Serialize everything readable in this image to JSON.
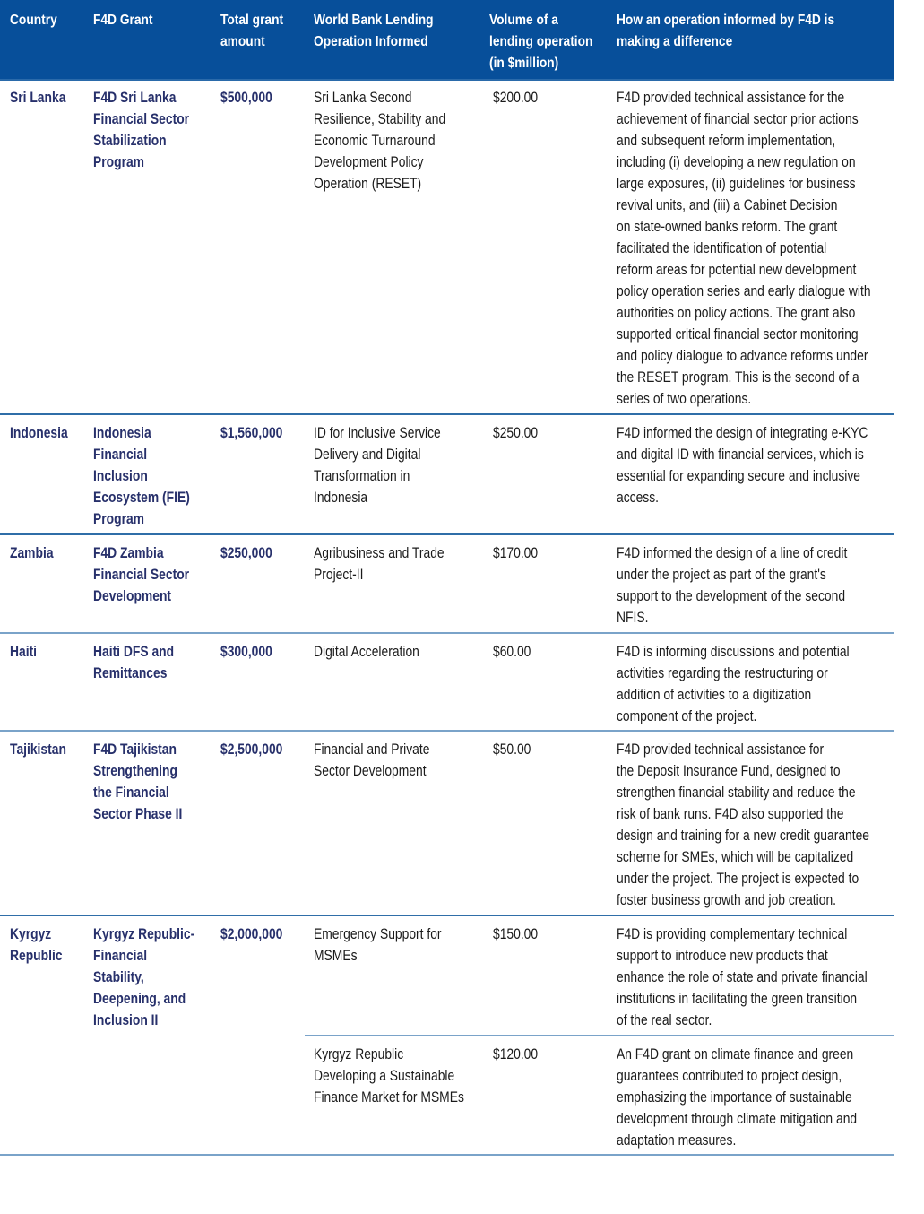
{
  "table": {
    "header_color": "#074f9a",
    "accent_text_color": "#27306b",
    "columns": [
      [
        "Country"
      ],
      [
        "F4D Grant"
      ],
      [
        "Total grant",
        "amount"
      ],
      [
        "World Bank Lending",
        "Operation Informed"
      ],
      [
        "Volume of a",
        "lending operation",
        "(in $million)"
      ],
      [
        "How an operation informed by F4D is",
        "making a difference"
      ]
    ],
    "rows": [
      {
        "country": [
          "Sri Lanka"
        ],
        "grant": [
          "F4D Sri Lanka",
          "Financial Sector",
          "Stabilization",
          "Program"
        ],
        "amount": "$500,000",
        "operations": [
          {
            "name": [
              "Sri Lanka Second",
              "Resilience, Stability and",
              "Economic Turnaround",
              "Development Policy",
              "Operation (RESET)"
            ],
            "volume": "$200.00",
            "difference": [
              "F4D provided technical assistance for the",
              "achievement of financial sector prior actions",
              "and subsequent reform implementation,",
              "including (i) developing a new regulation on",
              "large exposures, (ii) guidelines for business",
              "revival units, and (iii) a Cabinet Decision",
              "on state-owned banks reform. The grant",
              "facilitated the identification of potential",
              "reform areas for potential new development",
              "policy operation series and early dialogue with",
              "authorities on policy actions. The grant also",
              "supported critical financial sector monitoring",
              "and policy dialogue to advance reforms under",
              "the RESET program. This is the second of a",
              "series of two operations."
            ]
          }
        ]
      },
      {
        "country": [
          "Indonesia"
        ],
        "grant": [
          "Indonesia",
          "Financial",
          "Inclusion",
          "Ecosystem (FIE)",
          "Program"
        ],
        "amount": "$1,560,000",
        "operations": [
          {
            "name": [
              "ID for Inclusive Service",
              "Delivery and Digital",
              "Transformation in",
              "Indonesia"
            ],
            "volume": "$250.00",
            "difference": [
              "F4D informed the design of integrating e-KYC",
              "and digital ID with financial services, which is",
              "essential for expanding secure and inclusive",
              "access."
            ]
          }
        ]
      },
      {
        "country": [
          "Zambia"
        ],
        "grant": [
          "F4D Zambia",
          "Financial Sector",
          "Development"
        ],
        "amount": "$250,000",
        "operations": [
          {
            "name": [
              "Agribusiness and Trade",
              "Project-II"
            ],
            "volume": "$170.00",
            "difference": [
              "F4D informed the design of a line of credit",
              "under the project as part of the grant's",
              "support to the development of the second",
              "NFIS."
            ]
          }
        ]
      },
      {
        "country": [
          "Haiti"
        ],
        "grant": [
          "Haiti DFS and",
          "Remittances"
        ],
        "amount": "$300,000",
        "operations": [
          {
            "name": [
              "Digital Acceleration"
            ],
            "volume": "$60.00",
            "difference": [
              "F4D is informing discussions and potential",
              "activities regarding the restructuring or",
              "addition of activities to a digitization",
              "component of the project."
            ]
          }
        ]
      },
      {
        "country": [
          "Tajikistan"
        ],
        "grant": [
          "F4D Tajikistan",
          "Strengthening",
          "the Financial",
          "Sector Phase II"
        ],
        "amount": "$2,500,000",
        "operations": [
          {
            "name": [
              "Financial and Private",
              "Sector Development"
            ],
            "volume": "$50.00",
            "difference": [
              "F4D provided technical assistance for",
              "the Deposit Insurance Fund, designed to",
              "strengthen financial stability and reduce the",
              "risk of bank runs. F4D also supported the",
              "design and training for a new credit guarantee",
              "scheme for SMEs, which will be capitalized",
              "under the project. The project is expected to",
              "foster business growth and job creation."
            ]
          }
        ]
      },
      {
        "country": [
          "Kyrgyz",
          "Republic"
        ],
        "grant": [
          "Kyrgyz Republic-",
          "Financial",
          "Stability,",
          "Deepening, and",
          "Inclusion II"
        ],
        "amount": "$2,000,000",
        "operations": [
          {
            "name": [
              "Emergency Support for",
              "MSMEs"
            ],
            "volume": "$150.00",
            "difference": [
              "F4D is providing complementary technical",
              "support to introduce new products that",
              "enhance the role of state and private financial",
              "institutions in facilitating the green transition",
              "of the real sector."
            ]
          },
          {
            "name": [
              "Kyrgyz Republic",
              "Developing a Sustainable",
              "Finance Market for MSMEs"
            ],
            "volume": "$120.00",
            "difference": [
              "An F4D grant on climate finance and green",
              "guarantees contributed to project design,",
              "emphasizing the importance of sustainable",
              "development through climate mitigation and",
              "adaptation measures."
            ]
          }
        ]
      }
    ]
  }
}
